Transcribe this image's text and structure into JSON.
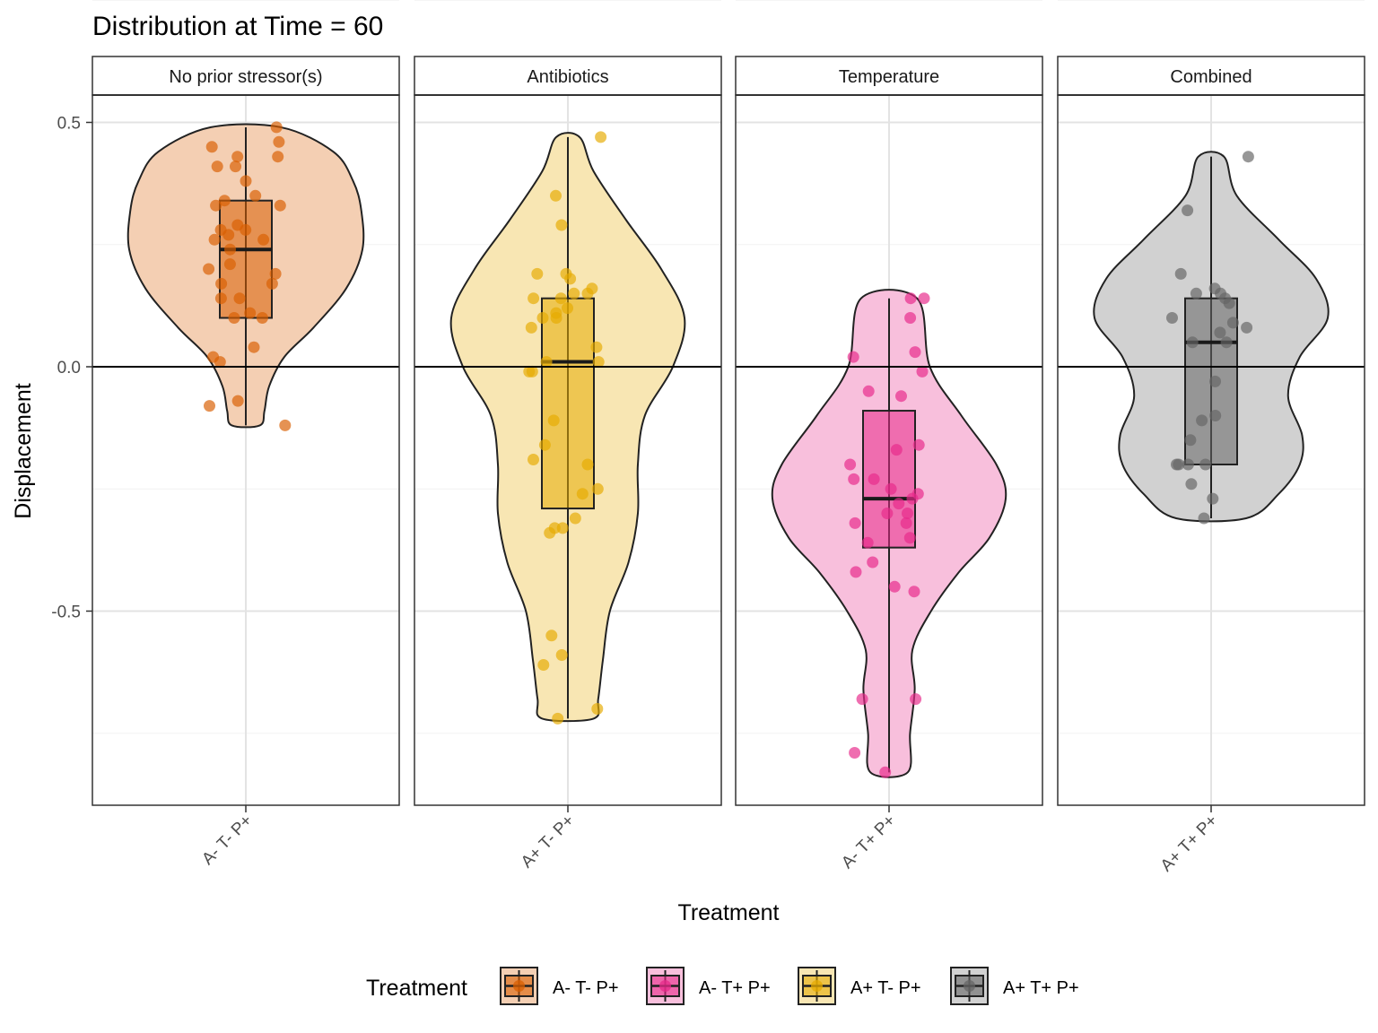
{
  "chart_data": {
    "type": "violin",
    "title": "Distribution at Time = 60",
    "xlabel": "Treatment",
    "ylabel": "Displacement",
    "y_ticks": [
      0.5,
      0.0,
      -0.5
    ],
    "y_tick_labels": [
      "0.5",
      "0.0",
      "-0.5"
    ],
    "ylim": [
      -0.9,
      0.63
    ],
    "reference_line": 0,
    "grid": true,
    "legend": {
      "title": "Treatment",
      "position": "bottom",
      "entries": [
        {
          "label": "A- T- P+",
          "color": "#D95F02"
        },
        {
          "label": "A- T+ P+",
          "color": "#E7298A"
        },
        {
          "label": "A+ T- P+",
          "color": "#E6AB02"
        },
        {
          "label": "A+ T+ P+",
          "color": "#666666"
        }
      ]
    },
    "facets": [
      {
        "strip": "No prior stressor(s)",
        "category": "A- T- P+",
        "color": "#D95F02",
        "box": {
          "q1": 0.1,
          "median": 0.24,
          "q3": 0.34,
          "min": -0.12,
          "max": 0.49
        },
        "violin": {
          "y": [
            0.49,
            0.44,
            0.38,
            0.32,
            0.24,
            0.16,
            0.08,
            0.02,
            -0.04,
            -0.09,
            -0.12
          ],
          "half_width": [
            0.3,
            0.75,
            0.92,
            0.99,
            1.0,
            0.86,
            0.58,
            0.33,
            0.2,
            0.16,
            0.12
          ]
        },
        "points": [
          0.49,
          0.46,
          0.45,
          0.43,
          0.43,
          0.41,
          0.41,
          0.38,
          0.35,
          0.34,
          0.33,
          0.33,
          0.29,
          0.28,
          0.28,
          0.27,
          0.26,
          0.26,
          0.24,
          0.21,
          0.2,
          0.19,
          0.17,
          0.17,
          0.14,
          0.14,
          0.11,
          0.1,
          0.1,
          0.04,
          0.02,
          0.01,
          -0.07,
          -0.08,
          -0.12
        ]
      },
      {
        "strip": "Antibiotics",
        "category": "A+ T- P+",
        "color": "#E6AB02",
        "box": {
          "q1": -0.29,
          "median": 0.01,
          "q3": 0.14,
          "min": -0.72,
          "max": 0.47
        },
        "violin": {
          "y": [
            0.47,
            0.4,
            0.3,
            0.2,
            0.1,
            0.0,
            -0.1,
            -0.2,
            -0.3,
            -0.4,
            -0.5,
            -0.6,
            -0.68,
            -0.72
          ],
          "half_width": [
            0.1,
            0.22,
            0.5,
            0.8,
            1.0,
            0.9,
            0.66,
            0.6,
            0.6,
            0.52,
            0.36,
            0.3,
            0.26,
            0.22
          ]
        },
        "points": [
          0.47,
          0.35,
          0.29,
          0.19,
          0.19,
          0.18,
          0.16,
          0.15,
          0.15,
          0.14,
          0.14,
          0.12,
          0.11,
          0.1,
          0.1,
          0.08,
          0.04,
          0.01,
          0.01,
          -0.01,
          -0.01,
          -0.11,
          -0.16,
          -0.19,
          -0.2,
          -0.25,
          -0.26,
          -0.31,
          -0.33,
          -0.33,
          -0.34,
          -0.55,
          -0.59,
          -0.61,
          -0.7,
          -0.72
        ]
      },
      {
        "strip": "Temperature",
        "category": "A- T+ P+",
        "color": "#E7298A",
        "box": {
          "q1": -0.37,
          "median": -0.27,
          "q3": -0.09,
          "min": -0.83,
          "max": 0.14
        },
        "violin": {
          "y": [
            0.14,
            0.0,
            -0.1,
            -0.2,
            -0.27,
            -0.35,
            -0.42,
            -0.5,
            -0.58,
            -0.66,
            -0.75,
            -0.83
          ],
          "half_width": [
            0.24,
            0.35,
            0.62,
            0.92,
            1.0,
            0.86,
            0.6,
            0.36,
            0.2,
            0.22,
            0.18,
            0.16
          ]
        },
        "points": [
          0.14,
          0.14,
          0.1,
          0.03,
          0.02,
          -0.01,
          -0.05,
          -0.06,
          -0.16,
          -0.17,
          -0.2,
          -0.23,
          -0.23,
          -0.25,
          -0.26,
          -0.27,
          -0.28,
          -0.3,
          -0.3,
          -0.32,
          -0.32,
          -0.35,
          -0.36,
          -0.4,
          -0.42,
          -0.45,
          -0.46,
          -0.68,
          -0.68,
          -0.79,
          -0.83
        ]
      },
      {
        "strip": "Combined",
        "category": "A+ T+ P+",
        "color": "#666666",
        "box": {
          "q1": -0.2,
          "median": 0.05,
          "q3": 0.14,
          "min": -0.31,
          "max": 0.43
        },
        "violin": {
          "y": [
            0.43,
            0.35,
            0.26,
            0.18,
            0.1,
            0.02,
            -0.06,
            -0.14,
            -0.2,
            -0.26,
            -0.31
          ],
          "half_width": [
            0.11,
            0.22,
            0.58,
            0.9,
            1.0,
            0.76,
            0.66,
            0.78,
            0.76,
            0.58,
            0.3
          ]
        },
        "points": [
          0.43,
          0.32,
          0.19,
          0.16,
          0.15,
          0.15,
          0.14,
          0.13,
          0.1,
          0.09,
          0.08,
          0.07,
          0.05,
          0.05,
          -0.03,
          -0.1,
          -0.11,
          -0.15,
          -0.2,
          -0.2,
          -0.2,
          -0.2,
          -0.24,
          -0.27,
          -0.31
        ]
      }
    ]
  }
}
